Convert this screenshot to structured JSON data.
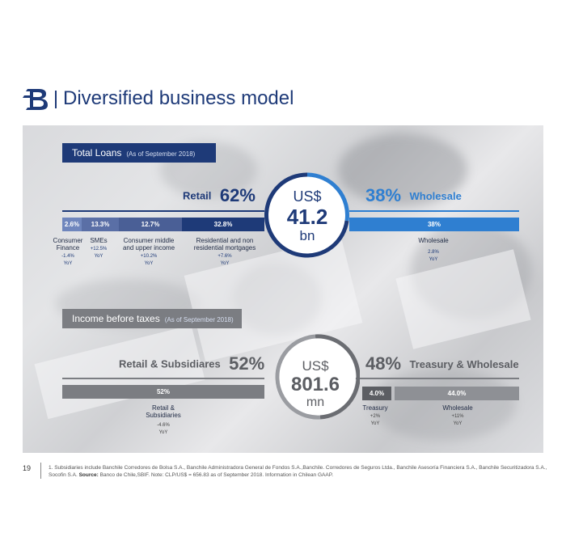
{
  "header": {
    "title": "Diversified business model",
    "logo": "banchile-logo-icon"
  },
  "loans": {
    "section_title": "Total Loans",
    "section_subtitle": "(As of September 2018)",
    "left_label": "Retail",
    "left_pct": "62%",
    "right_pct": "38%",
    "right_label": "Wholesale",
    "circle": {
      "currency": "US$",
      "amount": "41.2",
      "unit": "bn"
    },
    "segments": [
      {
        "value": "2.6%",
        "name": "Consumer Finance",
        "yoy": "-1.4%",
        "yoy_label": "YoY"
      },
      {
        "value": "13.3%",
        "name": "SMEs",
        "yoy": "+12.5%",
        "yoy_label": "YoY"
      },
      {
        "value": "12.7%",
        "name": "Consumer middle and upper income",
        "yoy": "+10.2%",
        "yoy_label": "YoY"
      },
      {
        "value": "32.8%",
        "name": "Residential and non residential mortgages",
        "yoy": "+7.6%",
        "yoy_label": "YoY"
      }
    ],
    "wholesale_segment": {
      "value": "38%",
      "name": "Wholesale",
      "yoy": "2.8%",
      "yoy_label": "YoY"
    }
  },
  "income": {
    "section_title": "Income before taxes",
    "section_subtitle": "(As of September 2018)",
    "left_label": "Retail & Subsidiares",
    "left_pct": "52%",
    "right_pct": "48%",
    "right_label": "Treasury & Wholesale",
    "circle": {
      "currency": "US$",
      "amount": "801.6",
      "unit": "mn"
    },
    "retail_segment": {
      "value": "52%",
      "name_line1": "Retail &",
      "name_line2": "Subsidiaries",
      "yoy": "-4.6%",
      "yoy_label": "YoY"
    },
    "treasury_segment": {
      "value": "4.0%",
      "name": "Treasury",
      "yoy": "+2%",
      "yoy_label": "YoY"
    },
    "wholesale_segment": {
      "value": "44.0%",
      "name": "Wholesale",
      "yoy": "+11%",
      "yoy_label": "YoY"
    }
  },
  "footer": {
    "page_number": "19",
    "note_part1": "1. Subsidiaries include Banchile Corredores de Bolsa S.A., Banchile Administradora General de Fondos S.A.,Banchile. Corredores de Seguros Ltda., Banchile Asesoría Financiera S.A., Banchile Securitizadora S.A., Socofin S.A.",
    "source_label": "Source:",
    "note_part2": "Banco de Chile,SBIF. Note: CLP/US$ = 656.83 as of September 2018. Information in Chilean GAAP."
  },
  "colors": {
    "navy": "#1e3a78",
    "blue": "#2f7fd1",
    "mid_navy": "#4a5f96",
    "grey": "#7b7d82",
    "dark_grey": "#5c5e63"
  }
}
